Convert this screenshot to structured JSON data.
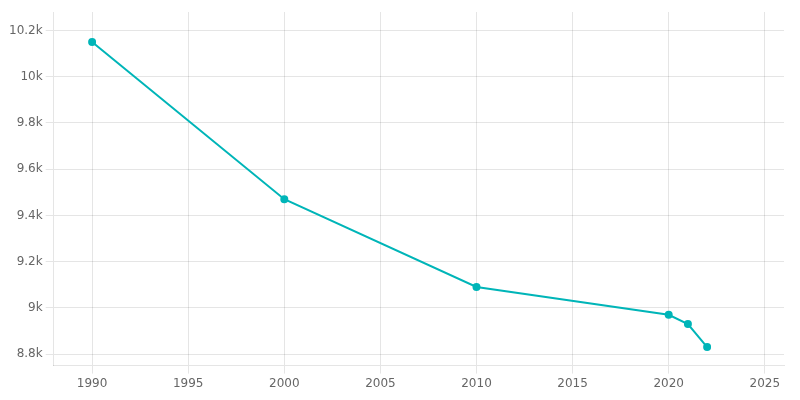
{
  "chart_data": {
    "type": "line",
    "x": [
      1990,
      2000,
      2010,
      2020,
      2021,
      2022
    ],
    "values": [
      10150,
      9470,
      9090,
      8970,
      8930,
      8830
    ],
    "color": "#00b5b8",
    "marker": "circle",
    "xlim": [
      1988,
      2026
    ],
    "xticks": [
      1990,
      1995,
      2000,
      2005,
      2010,
      2015,
      2020,
      2025
    ],
    "ylim": [
      8750,
      10280
    ],
    "yticks": [
      {
        "value": 8800,
        "label": "8.8k"
      },
      {
        "value": 9000,
        "label": "9k"
      },
      {
        "value": 9200,
        "label": "9.2k"
      },
      {
        "value": 9400,
        "label": "9.4k"
      },
      {
        "value": 9600,
        "label": "9.6k"
      },
      {
        "value": 9800,
        "label": "9.8k"
      },
      {
        "value": 10000,
        "label": "10k"
      },
      {
        "value": 10200,
        "label": "10.2k"
      }
    ],
    "grid": true
  }
}
